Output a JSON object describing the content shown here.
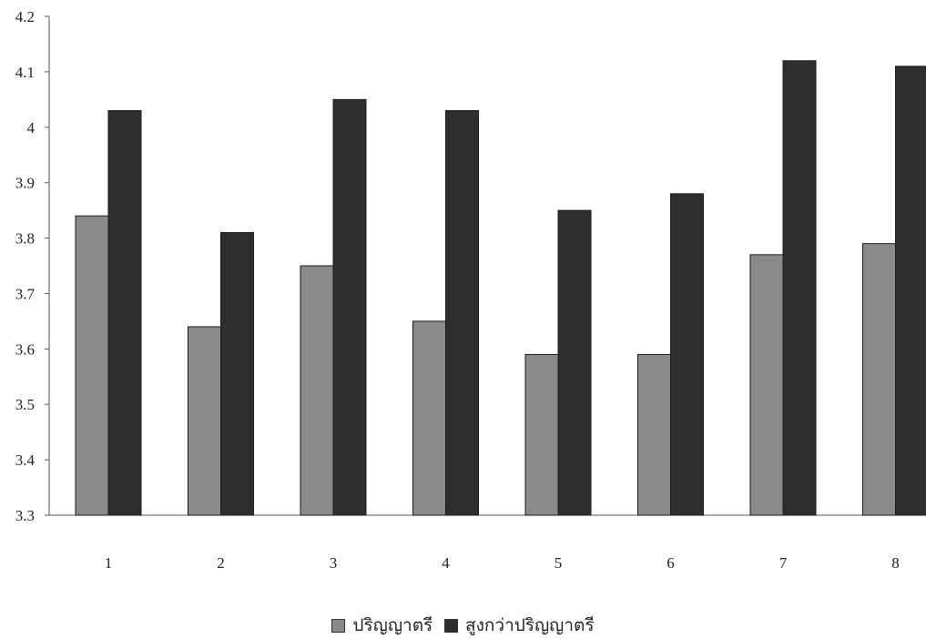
{
  "chart_data": {
    "type": "bar",
    "categories": [
      "1",
      "2",
      "3",
      "4",
      "5",
      "6",
      "7",
      "8"
    ],
    "series": [
      {
        "name": "ปริญญาตรี",
        "values": [
          3.84,
          3.64,
          3.75,
          3.65,
          3.59,
          3.59,
          3.77,
          3.79
        ],
        "color": "#8a8a8a"
      },
      {
        "name": "สูงกว่าปริญญาตรี",
        "values": [
          4.03,
          3.81,
          4.05,
          4.03,
          3.85,
          3.88,
          4.12,
          4.11
        ],
        "color": "#2e2e2e"
      }
    ],
    "yticks": [
      "3.3",
      "3.4",
      "3.5",
      "3.6",
      "3.7",
      "3.8",
      "3.9",
      "4",
      "4.1",
      "4.2"
    ],
    "ylim": [
      3.3,
      4.2
    ],
    "grid": false,
    "legend": "bottom-center",
    "title": "",
    "xlabel": "",
    "ylabel": ""
  }
}
